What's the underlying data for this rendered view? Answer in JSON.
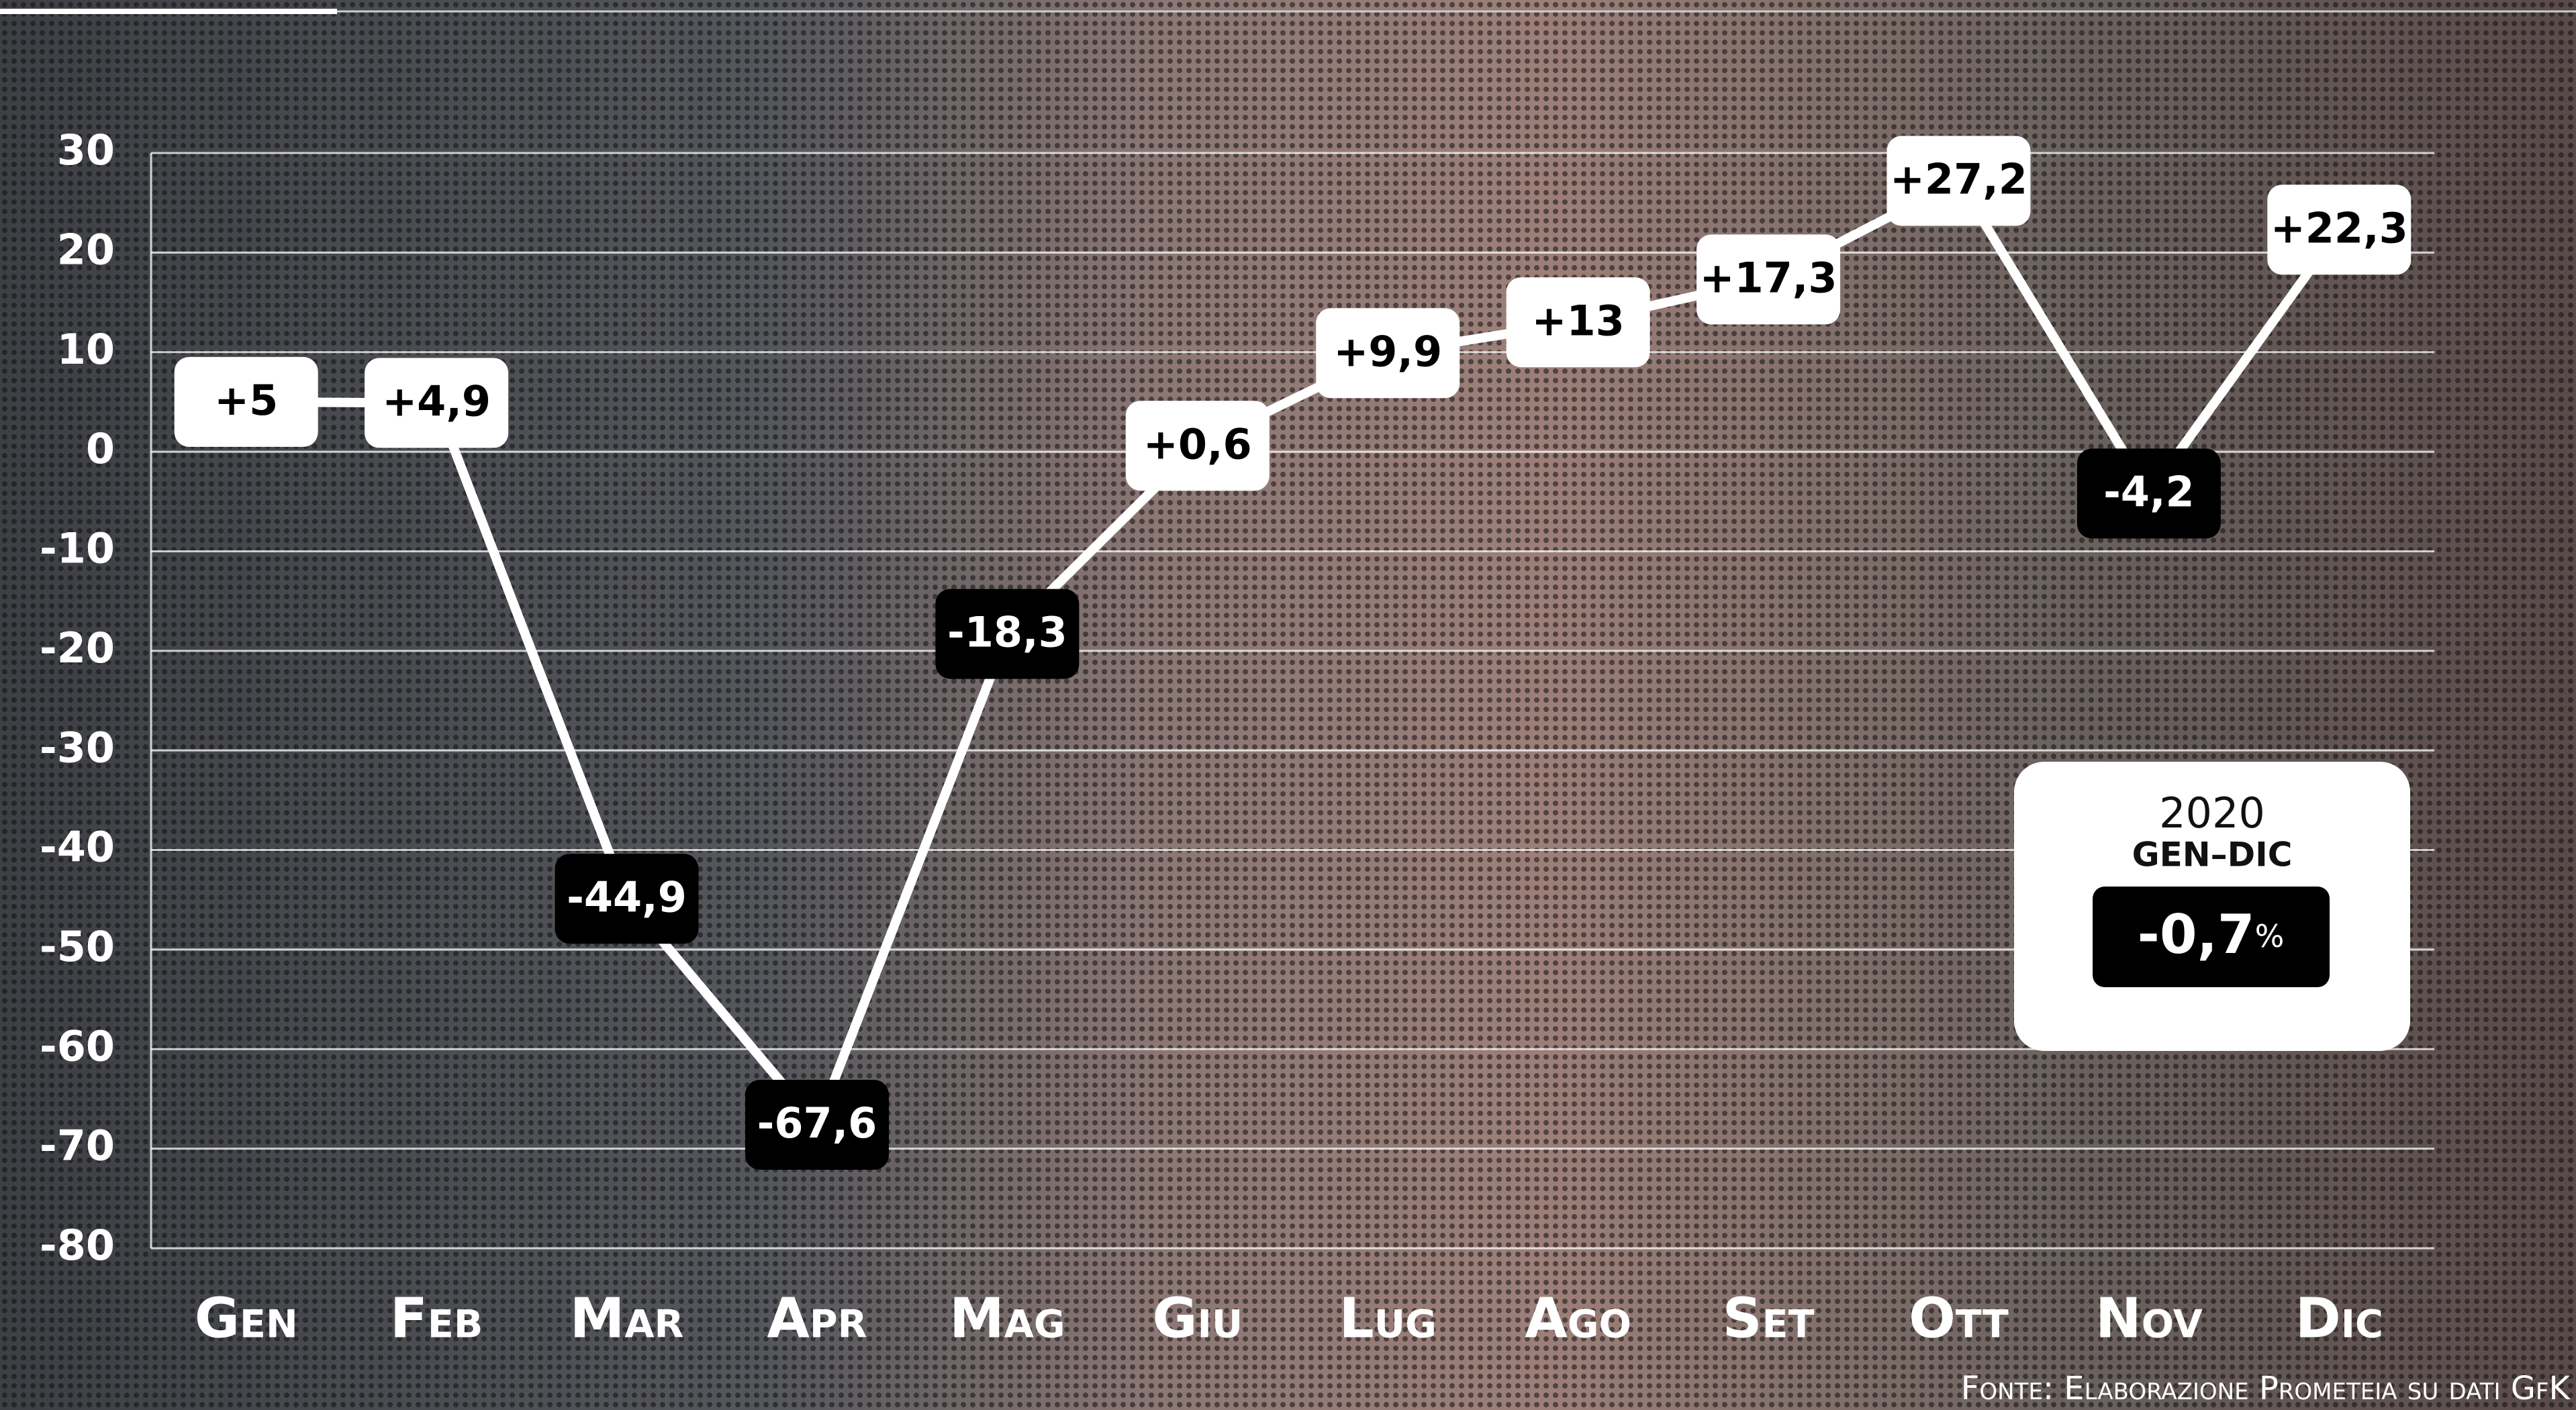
{
  "chart_data": {
    "type": "line",
    "categories": [
      "Gen",
      "Feb",
      "Mar",
      "Apr",
      "Mag",
      "Giu",
      "Lug",
      "Ago",
      "Set",
      "Ott",
      "Nov",
      "Dic"
    ],
    "values": [
      5,
      4.9,
      -44.9,
      -67.6,
      -18.3,
      0.6,
      9.9,
      13,
      17.3,
      27.2,
      -4.2,
      22.3
    ],
    "value_labels": [
      "+5",
      "+4,9",
      "-44,9",
      "-67,6",
      "-18,3",
      "+0,6",
      "+9,9",
      "+13",
      "+17,3",
      "+27,2",
      "-4,2",
      "+22,3"
    ],
    "color": "#ffffff",
    "ylim": [
      -80,
      30
    ],
    "yticks": [
      -80,
      -70,
      -60,
      -50,
      -40,
      -30,
      -20,
      -10,
      0,
      10,
      20,
      30
    ],
    "grid": true,
    "summary": {
      "year": "2020",
      "period": "GEN–DIC",
      "value": "-0,7",
      "unit": "%"
    },
    "source": "Fonte: Elaborazione Prometeia su dati GfK"
  }
}
